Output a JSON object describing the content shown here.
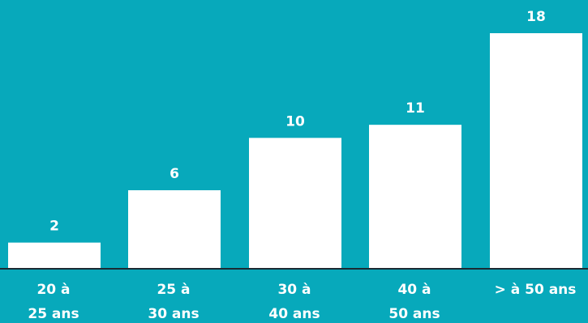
{
  "chart_data": {
    "type": "bar",
    "categories": [
      [
        "20 à",
        "25 ans"
      ],
      [
        "25 à",
        "30 ans"
      ],
      [
        "30 à",
        "40 ans"
      ],
      [
        "40 à",
        "50 ans"
      ],
      [
        "> à 50 ans"
      ]
    ],
    "values": [
      2,
      6,
      10,
      11,
      18
    ],
    "data_labels": [
      "2",
      "6",
      "10",
      "11",
      "18"
    ],
    "ylim": [
      0,
      18
    ],
    "grid": false,
    "legend": "none"
  },
  "colors": {
    "background": "#07A9BB",
    "bar": "#FFFFFF",
    "baseline": "#1A2A33",
    "text": "#FFFFFF"
  }
}
